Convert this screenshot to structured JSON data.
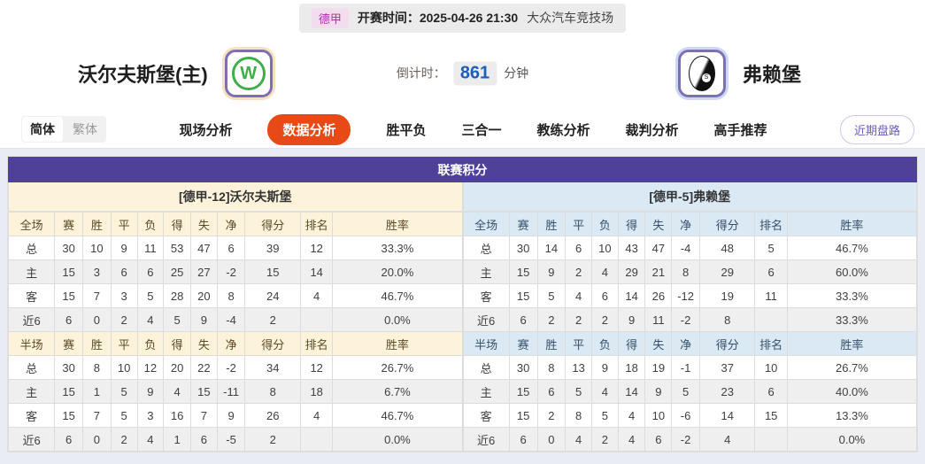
{
  "match_bar": {
    "league": "德甲",
    "kickoff": "开赛时间：2025-04-26 21:30",
    "venue": "大众汽车竞技场"
  },
  "header": {
    "home_team": "沃尔夫斯堡(主)",
    "away_team": "弗赖堡",
    "home_logo_letter": "W",
    "away_logo_letter": "S",
    "countdown_label": "倒计时：",
    "countdown_value": "861",
    "countdown_unit": "分钟"
  },
  "nav": {
    "lang_simplified": "简体",
    "lang_traditional": "繁体",
    "tabs": [
      {
        "label": "现场分析",
        "active": false
      },
      {
        "label": "数据分析",
        "active": true
      },
      {
        "label": "胜平负",
        "active": false
      },
      {
        "label": "三合一",
        "active": false
      },
      {
        "label": "教练分析",
        "active": false
      },
      {
        "label": "裁判分析",
        "active": false
      },
      {
        "label": "高手推荐",
        "active": false
      }
    ],
    "recent_trends_button": "近期盘路"
  },
  "table": {
    "title": "联赛积分",
    "home": {
      "team_header": "[德甲-12]沃尔夫斯堡",
      "full_header": [
        "全场",
        "赛",
        "胜",
        "平",
        "负",
        "得",
        "失",
        "净",
        "得分",
        "排名",
        "胜率"
      ],
      "full_rows": [
        [
          "总",
          "30",
          "10",
          "9",
          "11",
          "53",
          "47",
          "6",
          "39",
          "12",
          "33.3%"
        ],
        [
          "主",
          "15",
          "3",
          "6",
          "6",
          "25",
          "27",
          "-2",
          "15",
          "14",
          "20.0%"
        ],
        [
          "客",
          "15",
          "7",
          "3",
          "5",
          "28",
          "20",
          "8",
          "24",
          "4",
          "46.7%"
        ],
        [
          "近6",
          "6",
          "0",
          "2",
          "4",
          "5",
          "9",
          "-4",
          "2",
          "",
          "0.0%"
        ]
      ],
      "half_header": [
        "半场",
        "赛",
        "胜",
        "平",
        "负",
        "得",
        "失",
        "净",
        "得分",
        "排名",
        "胜率"
      ],
      "half_rows": [
        [
          "总",
          "30",
          "8",
          "10",
          "12",
          "20",
          "22",
          "-2",
          "34",
          "12",
          "26.7%"
        ],
        [
          "主",
          "15",
          "1",
          "5",
          "9",
          "4",
          "15",
          "-11",
          "8",
          "18",
          "6.7%"
        ],
        [
          "客",
          "15",
          "7",
          "5",
          "3",
          "16",
          "7",
          "9",
          "26",
          "4",
          "46.7%"
        ],
        [
          "近6",
          "6",
          "0",
          "2",
          "4",
          "1",
          "6",
          "-5",
          "2",
          "",
          "0.0%"
        ]
      ]
    },
    "away": {
      "team_header": "[德甲-5]弗赖堡",
      "full_header": [
        "全场",
        "赛",
        "胜",
        "平",
        "负",
        "得",
        "失",
        "净",
        "得分",
        "排名",
        "胜率"
      ],
      "full_rows": [
        [
          "总",
          "30",
          "14",
          "6",
          "10",
          "43",
          "47",
          "-4",
          "48",
          "5",
          "46.7%"
        ],
        [
          "主",
          "15",
          "9",
          "2",
          "4",
          "29",
          "21",
          "8",
          "29",
          "6",
          "60.0%"
        ],
        [
          "客",
          "15",
          "5",
          "4",
          "6",
          "14",
          "26",
          "-12",
          "19",
          "11",
          "33.3%"
        ],
        [
          "近6",
          "6",
          "2",
          "2",
          "2",
          "9",
          "11",
          "-2",
          "8",
          "",
          "33.3%"
        ]
      ],
      "half_header": [
        "半场",
        "赛",
        "胜",
        "平",
        "负",
        "得",
        "失",
        "净",
        "得分",
        "排名",
        "胜率"
      ],
      "half_rows": [
        [
          "总",
          "30",
          "8",
          "13",
          "9",
          "18",
          "19",
          "-1",
          "37",
          "10",
          "26.7%"
        ],
        [
          "主",
          "15",
          "6",
          "5",
          "4",
          "14",
          "9",
          "5",
          "23",
          "6",
          "40.0%"
        ],
        [
          "客",
          "15",
          "2",
          "8",
          "5",
          "4",
          "10",
          "-6",
          "14",
          "15",
          "13.3%"
        ],
        [
          "近6",
          "6",
          "0",
          "4",
          "2",
          "4",
          "6",
          "-2",
          "4",
          "",
          "0.0%"
        ]
      ]
    }
  },
  "colors": {
    "accent_purple": "#4f4199",
    "active_tab_orange": "#e84a17",
    "home_panel_cream": "#fcf3da",
    "away_panel_blue": "#dbe9f4",
    "home_label_red": "#cf2222",
    "away_label_blue": "#2233cc",
    "countdown_blue": "#1d5fb8",
    "league_badge_pink": "#a435a0"
  }
}
